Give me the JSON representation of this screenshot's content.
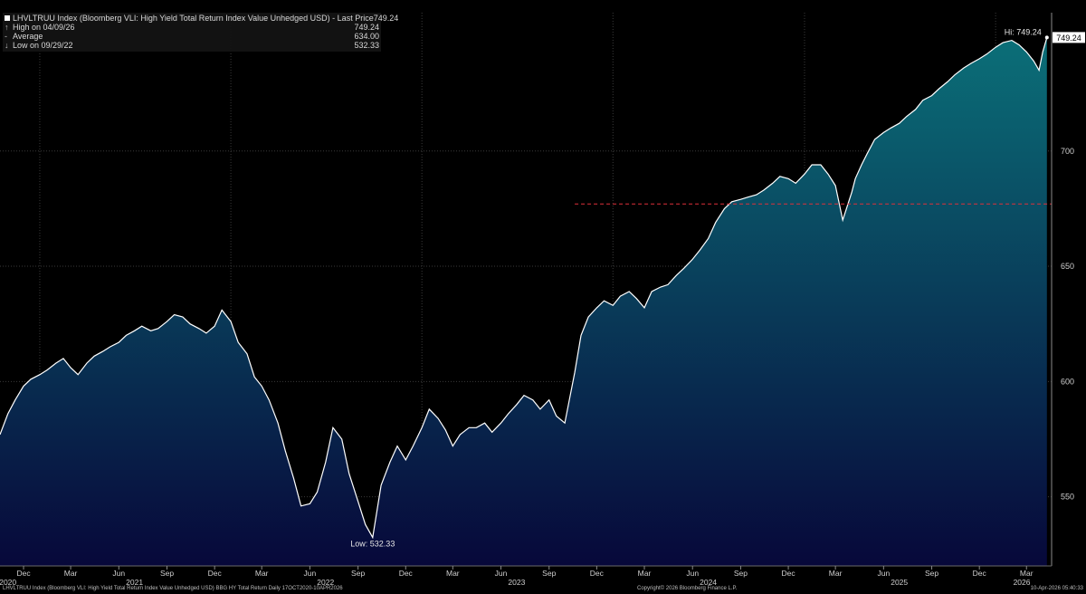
{
  "legend": {
    "title": "LHVLTRUU Index (Bloomberg VLI: High Yield Total Return Index Value Unhedged USD) - Last Price",
    "last_price": "749.24",
    "rows": [
      {
        "glyph": "↑",
        "label": "High on 04/09/26",
        "value": "749.24"
      },
      {
        "glyph": "-",
        "label": "Average",
        "value": "634.00"
      },
      {
        "glyph": "↓",
        "label": "Low on 09/29/22",
        "value": "532.33"
      }
    ]
  },
  "footer": {
    "left": "LHVLTRUU Index (Bloomberg VLI: High Yield Total Return Index Value Unhedged USD) BBG HY Total Return Daily 17OCT2020-10APR2026",
    "center": "Copyright© 2026 Bloomberg Finance L.P.",
    "right": "10-Apr-2026 05:40:33"
  },
  "colors": {
    "background": "#000000",
    "line": "#ffffff",
    "fill_top": "#0b6f78",
    "fill_bottom": "#07083a",
    "average_line": "#e0303a",
    "grid": "#3a3a3a"
  },
  "chart_data": {
    "type": "area",
    "series": [
      {
        "x": [
          "2020-10-17",
          "2020-11-01",
          "2020-11-15",
          "2020-12-01",
          "2020-12-15",
          "2021-01-01",
          "2021-01-15",
          "2021-02-01",
          "2021-02-15",
          "2021-03-01",
          "2021-03-15",
          "2021-04-01",
          "2021-04-15",
          "2021-05-01",
          "2021-05-15",
          "2021-06-01",
          "2021-06-15",
          "2021-07-01",
          "2021-07-15",
          "2021-08-01",
          "2021-08-15",
          "2021-09-01",
          "2021-09-15",
          "2021-10-01",
          "2021-10-15",
          "2021-11-01",
          "2021-11-15",
          "2021-12-01",
          "2021-12-15",
          "2022-01-01",
          "2022-01-15",
          "2022-02-01",
          "2022-02-15",
          "2022-03-01",
          "2022-03-15",
          "2022-04-01",
          "2022-04-15",
          "2022-05-01",
          "2022-05-15",
          "2022-06-01",
          "2022-06-15",
          "2022-07-01",
          "2022-07-15",
          "2022-08-01",
          "2022-08-15",
          "2022-09-01",
          "2022-09-15",
          "2022-09-29",
          "2022-10-15",
          "2022-11-01",
          "2022-11-15",
          "2022-12-01",
          "2022-12-15",
          "2023-01-01",
          "2023-01-15",
          "2023-02-01",
          "2023-02-15",
          "2023-03-01",
          "2023-03-15",
          "2023-04-01",
          "2023-04-15",
          "2023-05-01",
          "2023-05-15",
          "2023-06-01",
          "2023-06-15",
          "2023-07-01",
          "2023-07-15",
          "2023-08-01",
          "2023-08-15",
          "2023-09-01",
          "2023-09-15",
          "2023-10-01",
          "2023-10-20",
          "2023-11-01",
          "2023-11-15",
          "2023-12-01",
          "2023-12-15",
          "2024-01-01",
          "2024-01-15",
          "2024-02-01",
          "2024-02-15",
          "2024-03-01",
          "2024-03-15",
          "2024-04-01",
          "2024-04-15",
          "2024-05-01",
          "2024-05-15",
          "2024-06-01",
          "2024-06-15",
          "2024-07-01",
          "2024-07-15",
          "2024-08-01",
          "2024-08-15",
          "2024-09-01",
          "2024-09-15",
          "2024-10-01",
          "2024-10-15",
          "2024-11-01",
          "2024-11-15",
          "2024-12-01",
          "2024-12-15",
          "2025-01-01",
          "2025-01-15",
          "2025-02-01",
          "2025-02-15",
          "2025-03-01",
          "2025-03-15",
          "2025-04-01",
          "2025-04-08",
          "2025-04-20",
          "2025-05-01",
          "2025-05-15",
          "2025-06-01",
          "2025-06-15",
          "2025-07-01",
          "2025-07-15",
          "2025-08-01",
          "2025-08-15",
          "2025-09-01",
          "2025-09-15",
          "2025-10-01",
          "2025-10-15",
          "2025-11-01",
          "2025-11-15",
          "2025-12-01",
          "2025-12-15",
          "2026-01-01",
          "2026-01-15",
          "2026-02-01",
          "2026-02-15",
          "2026-03-01",
          "2026-03-15",
          "2026-03-25",
          "2026-04-01",
          "2026-04-09"
        ],
        "values": [
          577,
          586,
          592,
          598,
          601,
          603,
          605,
          608,
          610,
          606,
          603,
          608,
          611,
          613,
          615,
          617,
          620,
          622,
          624,
          622,
          623,
          626,
          629,
          628,
          625,
          623,
          621,
          624,
          631,
          626,
          617,
          612,
          602,
          598,
          592,
          582,
          570,
          558,
          546,
          547,
          552,
          565,
          580,
          575,
          560,
          548,
          538,
          532.33,
          555,
          565,
          572,
          566,
          572,
          580,
          588,
          584,
          579,
          572,
          577,
          580,
          580,
          582,
          578,
          582,
          586,
          590,
          594,
          592,
          588,
          592,
          585,
          582,
          604,
          620,
          628,
          632,
          635,
          633,
          637,
          639,
          636,
          632,
          639,
          641,
          642,
          646,
          649,
          653,
          657,
          662,
          669,
          675,
          678,
          679,
          680,
          681,
          683,
          686,
          689,
          688,
          686,
          690,
          694,
          694,
          690,
          685,
          670,
          682,
          688,
          694,
          699,
          705,
          708,
          710,
          712,
          715,
          718,
          722,
          724,
          727,
          730,
          733,
          736,
          738,
          740,
          742,
          745,
          747,
          748,
          746,
          743,
          739,
          735,
          743,
          749.24
        ]
      }
    ],
    "ylim": [
      520,
      760
    ],
    "yticks": [
      550,
      600,
      650,
      700
    ],
    "ytick_labels": [
      "550",
      "600",
      "650",
      "700"
    ],
    "x_months": [
      {
        "date": "2020-12-01",
        "label": "Dec"
      },
      {
        "date": "2021-03-01",
        "label": "Mar"
      },
      {
        "date": "2021-06-01",
        "label": "Jun"
      },
      {
        "date": "2021-09-01",
        "label": "Sep"
      },
      {
        "date": "2021-12-01",
        "label": "Dec"
      },
      {
        "date": "2022-03-01",
        "label": "Mar"
      },
      {
        "date": "2022-06-01",
        "label": "Jun"
      },
      {
        "date": "2022-09-01",
        "label": "Sep"
      },
      {
        "date": "2022-12-01",
        "label": "Dec"
      },
      {
        "date": "2023-03-01",
        "label": "Mar"
      },
      {
        "date": "2023-06-01",
        "label": "Jun"
      },
      {
        "date": "2023-09-01",
        "label": "Sep"
      },
      {
        "date": "2023-12-01",
        "label": "Dec"
      },
      {
        "date": "2024-03-01",
        "label": "Mar"
      },
      {
        "date": "2024-06-01",
        "label": "Jun"
      },
      {
        "date": "2024-09-01",
        "label": "Sep"
      },
      {
        "date": "2024-12-01",
        "label": "Dec"
      },
      {
        "date": "2025-03-01",
        "label": "Mar"
      },
      {
        "date": "2025-06-01",
        "label": "Jun"
      },
      {
        "date": "2025-09-01",
        "label": "Sep"
      },
      {
        "date": "2025-12-01",
        "label": "Dec"
      },
      {
        "date": "2026-03-01",
        "label": "Mar"
      }
    ],
    "x_years": [
      {
        "date": "2020-11-01",
        "label": "2020"
      },
      {
        "date": "2021-07-01",
        "label": "2021"
      },
      {
        "date": "2022-07-01",
        "label": "2022"
      },
      {
        "date": "2023-07-01",
        "label": "2023"
      },
      {
        "date": "2024-07-01",
        "label": "2024"
      },
      {
        "date": "2025-07-01",
        "label": "2025"
      },
      {
        "date": "2026-02-20",
        "label": "2026"
      }
    ],
    "grid": true,
    "average": {
      "value": 677,
      "start": "2023-10-20",
      "end": "2026-04-10"
    },
    "annotations": [
      {
        "date": "2026-04-09",
        "value": 749.24,
        "text": "Hi: 749.24"
      },
      {
        "date": "2022-09-29",
        "value": 532.33,
        "text": "Low: 532.33"
      }
    ],
    "last_value_label": "749.24"
  }
}
